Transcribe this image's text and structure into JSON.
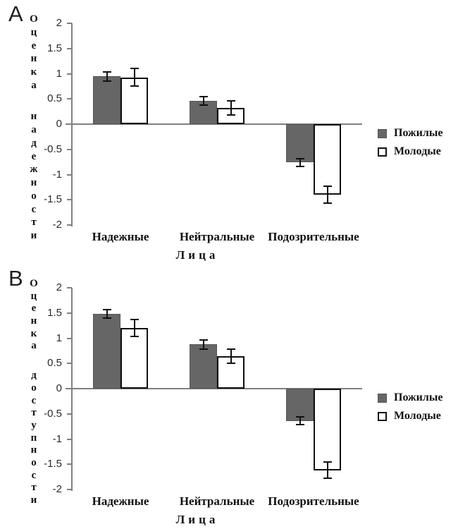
{
  "figure": {
    "background": "#ffffff",
    "description_labels": {
      "panel_a": "A",
      "panel_b": "B"
    }
  },
  "colors": {
    "bar_elderly_fill": "#666666",
    "bar_elderly_border": "#565656",
    "bar_young_fill": "#ffffff",
    "bar_young_border": "#111111",
    "axis_line": "#808080",
    "error_bar": "#111111",
    "text": "#111111"
  },
  "chart_data": [
    {
      "type": "bar",
      "panel_label": "A",
      "title": "",
      "ylabel": "Оценка надежности",
      "xlabel": "Лица",
      "categories": [
        "Надежные",
        "Нейтральные",
        "Подозрительные"
      ],
      "series": [
        {
          "name": "Пожилые",
          "values": [
            0.95,
            0.46,
            -0.76
          ],
          "errors": [
            0.09,
            0.08,
            0.08
          ],
          "fill": "#666666",
          "border": "#565656",
          "border_width": 1
        },
        {
          "name": "Молодые",
          "values": [
            0.93,
            0.32,
            -1.4
          ],
          "errors": [
            0.18,
            0.14,
            0.17
          ],
          "fill": "#ffffff",
          "border": "#111111",
          "border_width": 2
        }
      ],
      "ylim": [
        -2,
        2
      ],
      "yticks": [
        2,
        1.5,
        1,
        0.5,
        0,
        -0.5,
        -1,
        -1.5,
        -2
      ],
      "ytick_labels": [
        "2",
        "1.5",
        "1",
        "0.5",
        "0",
        "-0.5",
        "-1",
        "-1.5",
        "-2"
      ],
      "grid": false,
      "error_bars": true,
      "legend_position": "right"
    },
    {
      "type": "bar",
      "panel_label": "B",
      "title": "",
      "ylabel": "Оценка доступности",
      "xlabel": "Лица",
      "categories": [
        "Надежные",
        "Нейтральные",
        "Подозрительные"
      ],
      "series": [
        {
          "name": "Пожилые",
          "values": [
            1.48,
            0.88,
            -0.64
          ],
          "errors": [
            0.08,
            0.09,
            0.08
          ],
          "fill": "#666666",
          "border": "#565656",
          "border_width": 1
        },
        {
          "name": "Молодые",
          "values": [
            1.2,
            0.64,
            -1.62
          ],
          "errors": [
            0.17,
            0.14,
            0.16
          ],
          "fill": "#ffffff",
          "border": "#111111",
          "border_width": 2
        }
      ],
      "ylim": [
        -2,
        2
      ],
      "yticks": [
        2,
        1.5,
        1,
        0.5,
        0,
        -0.5,
        -1,
        -1.5,
        -2
      ],
      "ytick_labels": [
        "2",
        "1.5",
        "1",
        "0.5",
        "0",
        "-0.5",
        "-1",
        "-1.5",
        "-2"
      ],
      "grid": false,
      "error_bars": true,
      "legend_position": "right"
    }
  ]
}
